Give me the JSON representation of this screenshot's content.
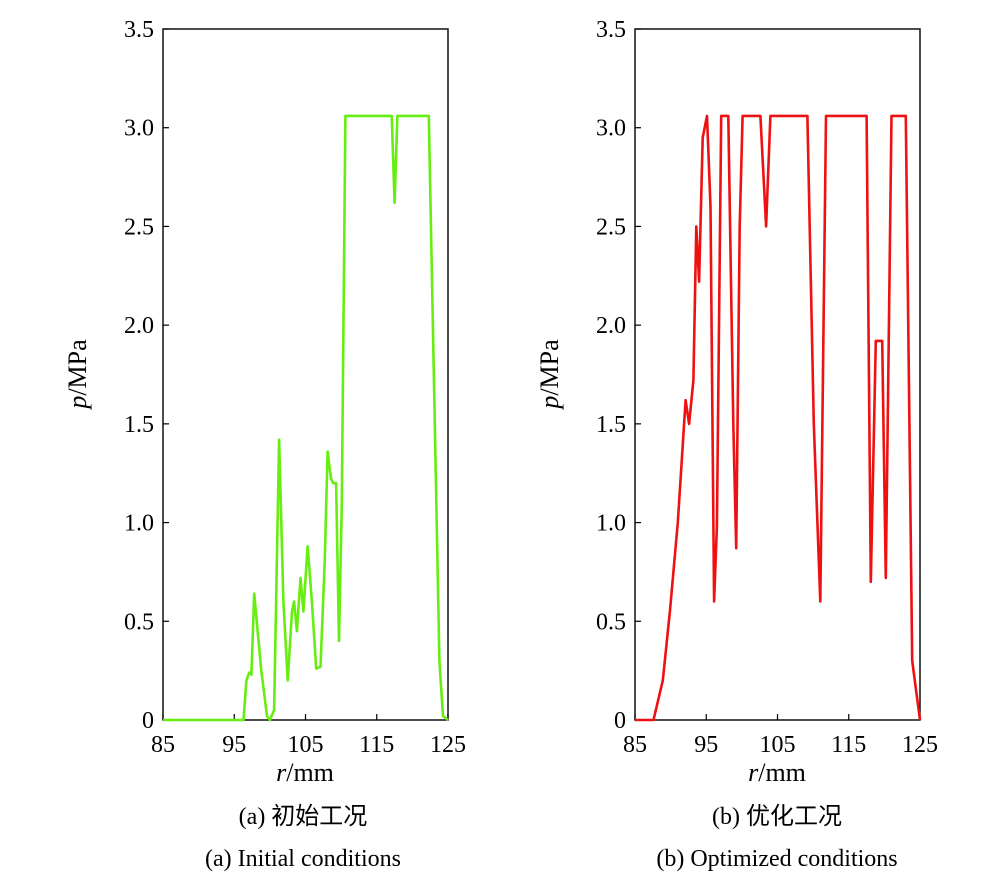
{
  "chart_data": [
    {
      "type": "line",
      "color": "#66ee11",
      "xlabel_var": "r",
      "xlabel_unit": "/mm",
      "ylabel_var": "p",
      "ylabel_unit": "/MPa",
      "caption_zh": "(a) 初始工况",
      "caption_en": "(a) Initial conditions",
      "xlim": [
        85,
        125
      ],
      "ylim": [
        0,
        3.5
      ],
      "xticks": [
        85,
        95,
        105,
        115,
        125
      ],
      "yticks": [
        0,
        0.5,
        1.0,
        1.5,
        2.0,
        2.5,
        3.0,
        3.5
      ],
      "xtick_labels": [
        "85",
        "95",
        "105",
        "115",
        "125"
      ],
      "ytick_labels": [
        "0",
        "0.5",
        "1.0",
        "1.5",
        "2.0",
        "2.5",
        "3.0",
        "3.5"
      ],
      "grid": false,
      "series": [
        {
          "points": [
            [
              85,
              0
            ],
            [
              96.3,
              0
            ],
            [
              96.7,
              0.2
            ],
            [
              97.1,
              0.24
            ],
            [
              97.4,
              0.23
            ],
            [
              97.8,
              0.64
            ],
            [
              98.8,
              0.25
            ],
            [
              99.6,
              0.02
            ],
            [
              100.0,
              0.0
            ],
            [
              100.6,
              0.05
            ],
            [
              101.3,
              1.42
            ],
            [
              101.9,
              0.6
            ],
            [
              102.5,
              0.2
            ],
            [
              103.1,
              0.55
            ],
            [
              103.4,
              0.6
            ],
            [
              103.8,
              0.45
            ],
            [
              104.3,
              0.72
            ],
            [
              104.7,
              0.55
            ],
            [
              105.3,
              0.88
            ],
            [
              105.9,
              0.6
            ],
            [
              106.5,
              0.26
            ],
            [
              107.1,
              0.27
            ],
            [
              107.7,
              0.8
            ],
            [
              108.1,
              1.36
            ],
            [
              108.6,
              1.22
            ],
            [
              108.9,
              1.2
            ],
            [
              109.3,
              1.2
            ],
            [
              109.7,
              0.4
            ],
            [
              110.1,
              1.1
            ],
            [
              110.6,
              3.06
            ],
            [
              117.1,
              3.06
            ],
            [
              117.5,
              2.62
            ],
            [
              117.9,
              3.06
            ],
            [
              122.3,
              3.06
            ],
            [
              123.8,
              0.3
            ],
            [
              124.3,
              0.02
            ],
            [
              125,
              0
            ]
          ]
        }
      ]
    },
    {
      "type": "line",
      "color": "#ee1111",
      "xlabel_var": "r",
      "xlabel_unit": "/mm",
      "ylabel_var": "p",
      "ylabel_unit": "/MPa",
      "caption_zh": "(b) 优化工况",
      "caption_en": "(b) Optimized conditions",
      "xlim": [
        85,
        125
      ],
      "ylim": [
        0,
        3.5
      ],
      "xticks": [
        85,
        95,
        105,
        115,
        125
      ],
      "yticks": [
        0,
        0.5,
        1.0,
        1.5,
        2.0,
        2.5,
        3.0,
        3.5
      ],
      "xtick_labels": [
        "85",
        "95",
        "105",
        "115",
        "125"
      ],
      "ytick_labels": [
        "0",
        "0.5",
        "1.0",
        "1.5",
        "2.0",
        "2.5",
        "3.0",
        "3.5"
      ],
      "grid": false,
      "series": [
        {
          "points": [
            [
              85,
              0
            ],
            [
              87.6,
              0
            ],
            [
              88.9,
              0.2
            ],
            [
              89.9,
              0.55
            ],
            [
              91.0,
              1.0
            ],
            [
              92.1,
              1.62
            ],
            [
              92.6,
              1.5
            ],
            [
              93.2,
              1.72
            ],
            [
              93.6,
              2.5
            ],
            [
              94.0,
              2.22
            ],
            [
              94.5,
              2.95
            ],
            [
              95.1,
              3.06
            ],
            [
              95.6,
              2.6
            ],
            [
              96.1,
              0.6
            ],
            [
              96.5,
              0.98
            ],
            [
              97.1,
              3.06
            ],
            [
              98.1,
              3.06
            ],
            [
              98.8,
              1.5
            ],
            [
              99.2,
              0.87
            ],
            [
              99.7,
              2.5
            ],
            [
              100.1,
              3.06
            ],
            [
              102.6,
              3.06
            ],
            [
              103.4,
              2.5
            ],
            [
              104.0,
              3.06
            ],
            [
              109.2,
              3.06
            ],
            [
              110.1,
              1.5
            ],
            [
              111.0,
              0.6
            ],
            [
              111.8,
              3.06
            ],
            [
              117.5,
              3.06
            ],
            [
              118.1,
              0.7
            ],
            [
              118.8,
              1.92
            ],
            [
              119.7,
              1.92
            ],
            [
              120.2,
              0.72
            ],
            [
              121.0,
              3.06
            ],
            [
              123.0,
              3.06
            ],
            [
              123.9,
              0.3
            ],
            [
              125,
              0
            ]
          ]
        }
      ]
    }
  ]
}
